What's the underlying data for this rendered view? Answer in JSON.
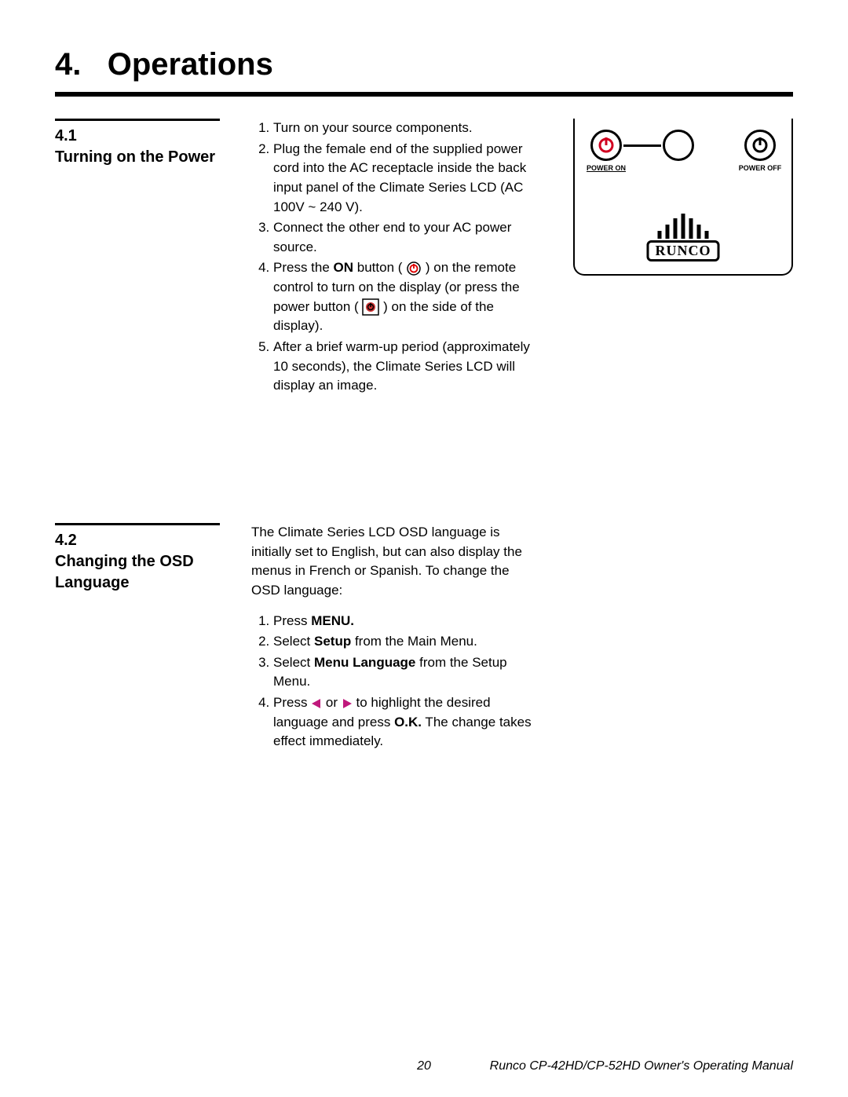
{
  "chapter": {
    "number": "4.",
    "title": "Operations"
  },
  "sections": [
    {
      "num": "4.1",
      "title": "Turning on the Power",
      "intro": null,
      "steps_html": [
        "Turn on your source components.",
        "Plug the female end of the supplied power cord into the AC receptacle inside the back input panel of the Climate Series LCD (AC 100V ~ 240 V).",
        "Connect the other end to your AC power source.",
        "Press the <b>ON</b> button ( <svg class='inline-icon' width='20' height='20'><circle cx='10' cy='10' r='8' fill='none' stroke='#000' stroke-width='1.5'/><circle cx='10' cy='10' r='4.5' fill='none' stroke='#d00' stroke-width='1.8'/><line x1='10' y1='4' x2='10' y2='10' stroke='#d00' stroke-width='1.8'/></svg> ) on the remote control to turn on the display (or press the power button ( <svg class='inline-icon' width='22' height='22'><rect x='1' y='1' width='20' height='20' fill='none' stroke='#000' stroke-width='1.5'/><circle cx='11' cy='11' r='6' fill='#c33'/><circle cx='11' cy='11' r='3.5' fill='none' stroke='#000' stroke-width='1.5'/><line x1='11' y1='6' x2='11' y2='11' stroke='#000' stroke-width='1.5'/></svg> ) on the side of the display).",
        "After a brief warm-up period (approximately 10 seconds), the Climate Series LCD will display an image."
      ],
      "has_figure": true
    },
    {
      "num": "4.2",
      "title": "Changing the OSD Language",
      "intro": "The Climate Series LCD OSD language is initially set to English, but can also display the menus in French or Spanish. To change the OSD language:",
      "steps_html": [
        "Press <b>MENU.</b>",
        "Select <b>Setup</b> from the Main Menu.",
        "Select <b>Menu Language</b> from the Setup Menu.",
        "Press <svg class='inline-icon' width='14' height='14'><polygon points='12,1 12,13 1,7' fill='#c0187c'/></svg> or <svg class='inline-icon' width='14' height='14'><polygon points='2,1 2,13 13,7' fill='#c0187c'/></svg> to highlight the desired language and press <b>O.K.</b> The change takes effect immediately."
      ],
      "has_figure": false
    }
  ],
  "figure": {
    "power_on_label": "POWER ON",
    "power_off_label": "POWER OFF",
    "logo_text": "RUNCO",
    "colors": {
      "power_on_icon": "#d00020",
      "power_off_icon": "#000000"
    }
  },
  "footer": {
    "page": "20",
    "doc": "Runco CP-42HD/CP-52HD Owner's Operating Manual"
  }
}
